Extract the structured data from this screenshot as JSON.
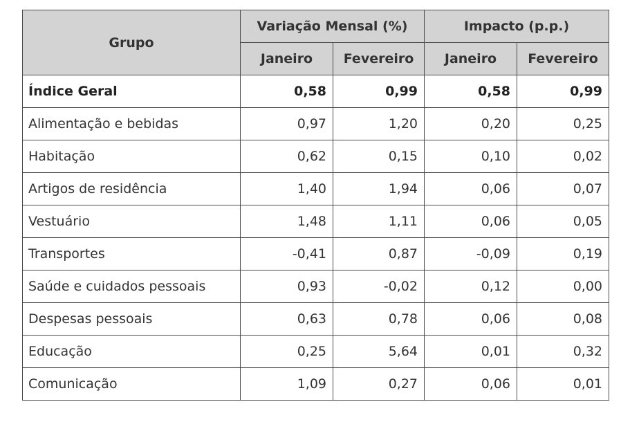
{
  "table": {
    "header": {
      "group": "Grupo",
      "variation": "Variação Mensal (%)",
      "impact": "Impacto (p.p.)",
      "sub": [
        "Janeiro",
        "Fevereiro",
        "Janeiro",
        "Fevereiro"
      ]
    },
    "rows": [
      {
        "label": "Índice Geral",
        "values": [
          "0,58",
          "0,99",
          "0,58",
          "0,99"
        ]
      },
      {
        "label": "Alimentação e bebidas",
        "values": [
          "0,97",
          "1,20",
          "0,20",
          "0,25"
        ]
      },
      {
        "label": "Habitação",
        "values": [
          "0,62",
          "0,15",
          "0,10",
          "0,02"
        ]
      },
      {
        "label": "Artigos de residência",
        "values": [
          "1,40",
          "1,94",
          "0,06",
          "0,07"
        ]
      },
      {
        "label": "Vestuário",
        "values": [
          "1,48",
          "1,11",
          "0,06",
          "0,05"
        ]
      },
      {
        "label": "Transportes",
        "values": [
          "-0,41",
          "0,87",
          "-0,09",
          "0,19"
        ]
      },
      {
        "label": "Saúde e cuidados pessoais",
        "values": [
          "0,93",
          "-0,02",
          "0,12",
          "0,00"
        ]
      },
      {
        "label": "Despesas pessoais",
        "values": [
          "0,63",
          "0,78",
          "0,06",
          "0,08"
        ]
      },
      {
        "label": "Educação",
        "values": [
          "0,25",
          "5,64",
          "0,01",
          "0,32"
        ]
      },
      {
        "label": "Comunicação",
        "values": [
          "1,09",
          "0,27",
          "0,06",
          "0,01"
        ]
      }
    ]
  }
}
